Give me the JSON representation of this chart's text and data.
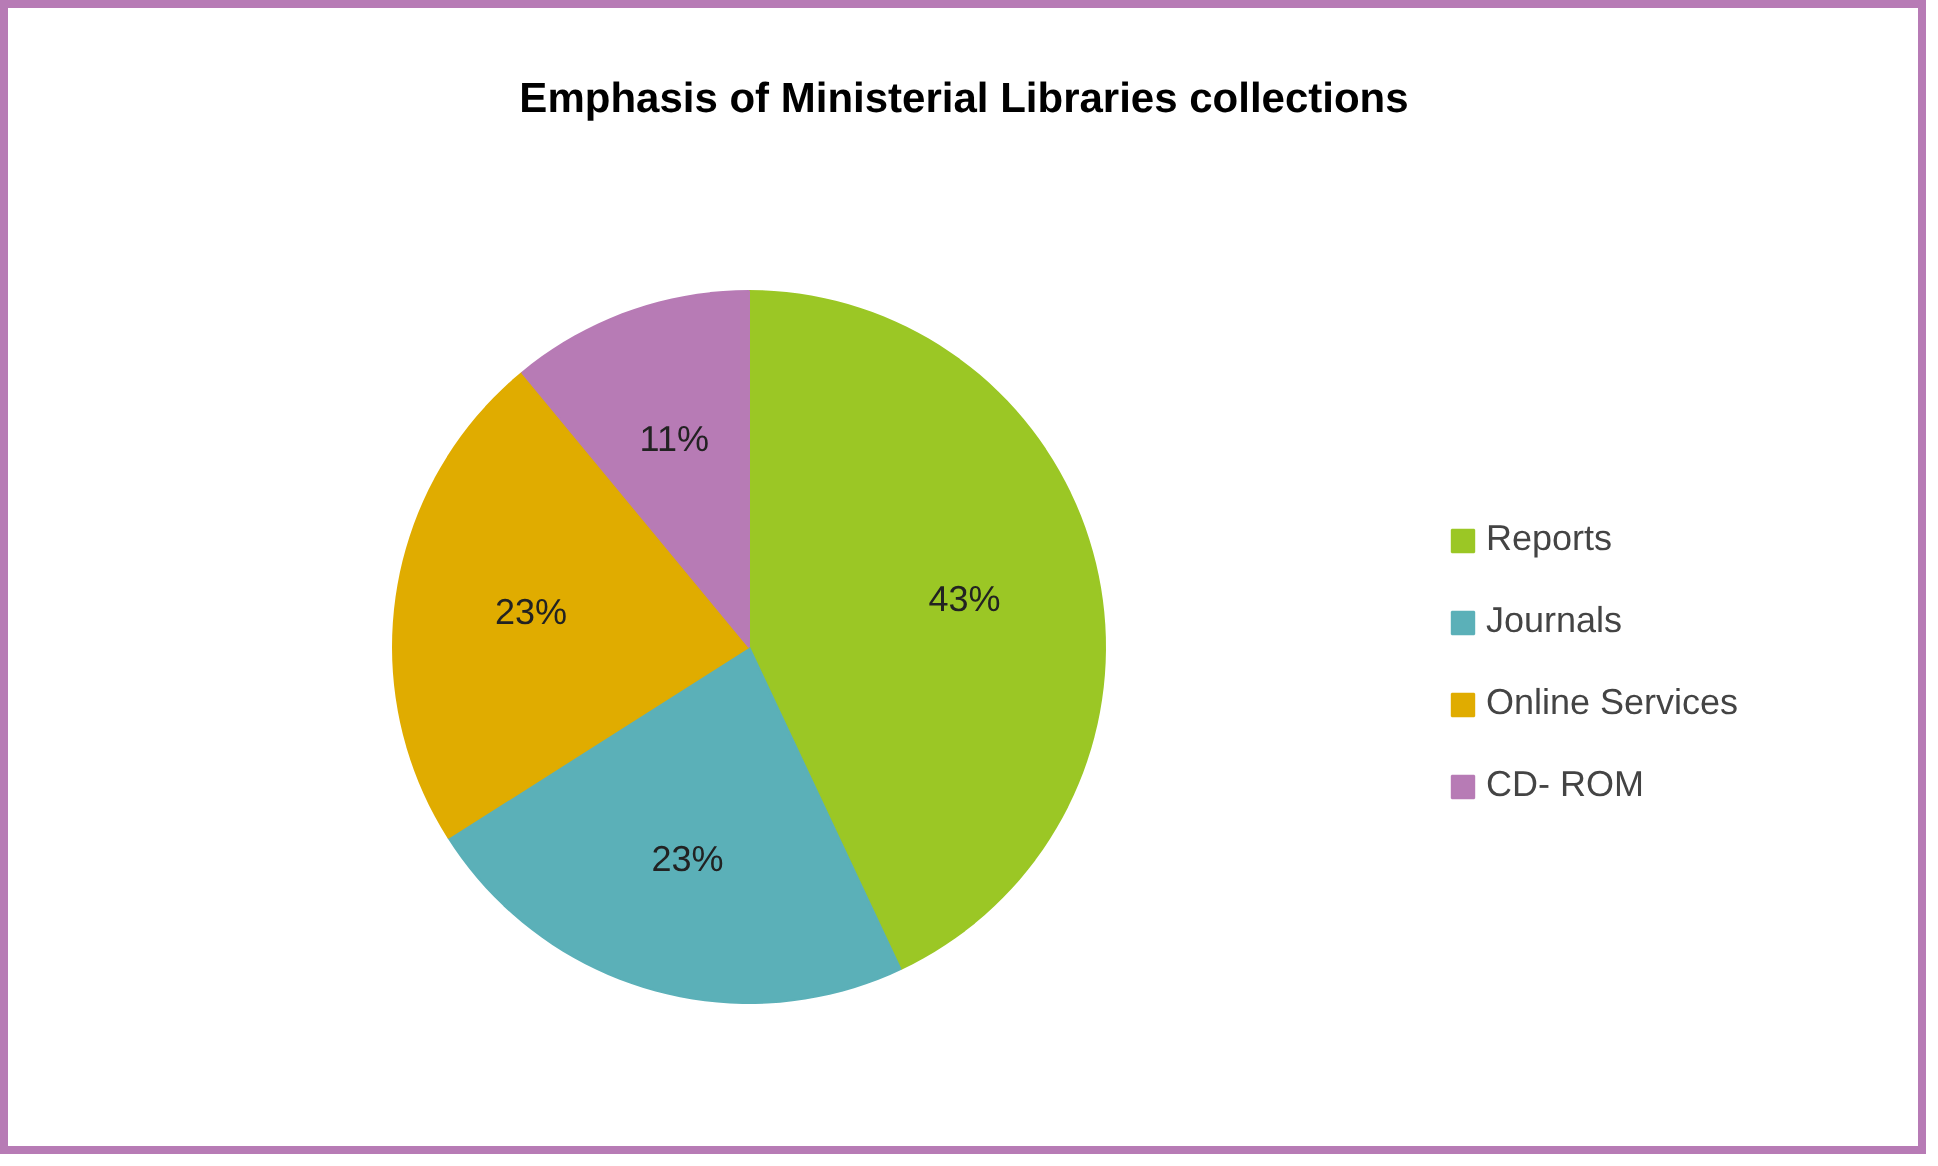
{
  "chart_data": {
    "type": "pie",
    "title": "Emphasis of Ministerial Libraries collections",
    "categories": [
      "Reports",
      "Journals",
      "Online Services",
      "CD- ROM"
    ],
    "values": [
      43,
      23,
      23,
      11
    ],
    "value_labels": [
      "43%",
      "23%",
      "23%",
      "11%"
    ],
    "colors": [
      "#9bc725",
      "#5bb0b8",
      "#e0ac00",
      "#b77bb5"
    ],
    "legend": "right"
  }
}
